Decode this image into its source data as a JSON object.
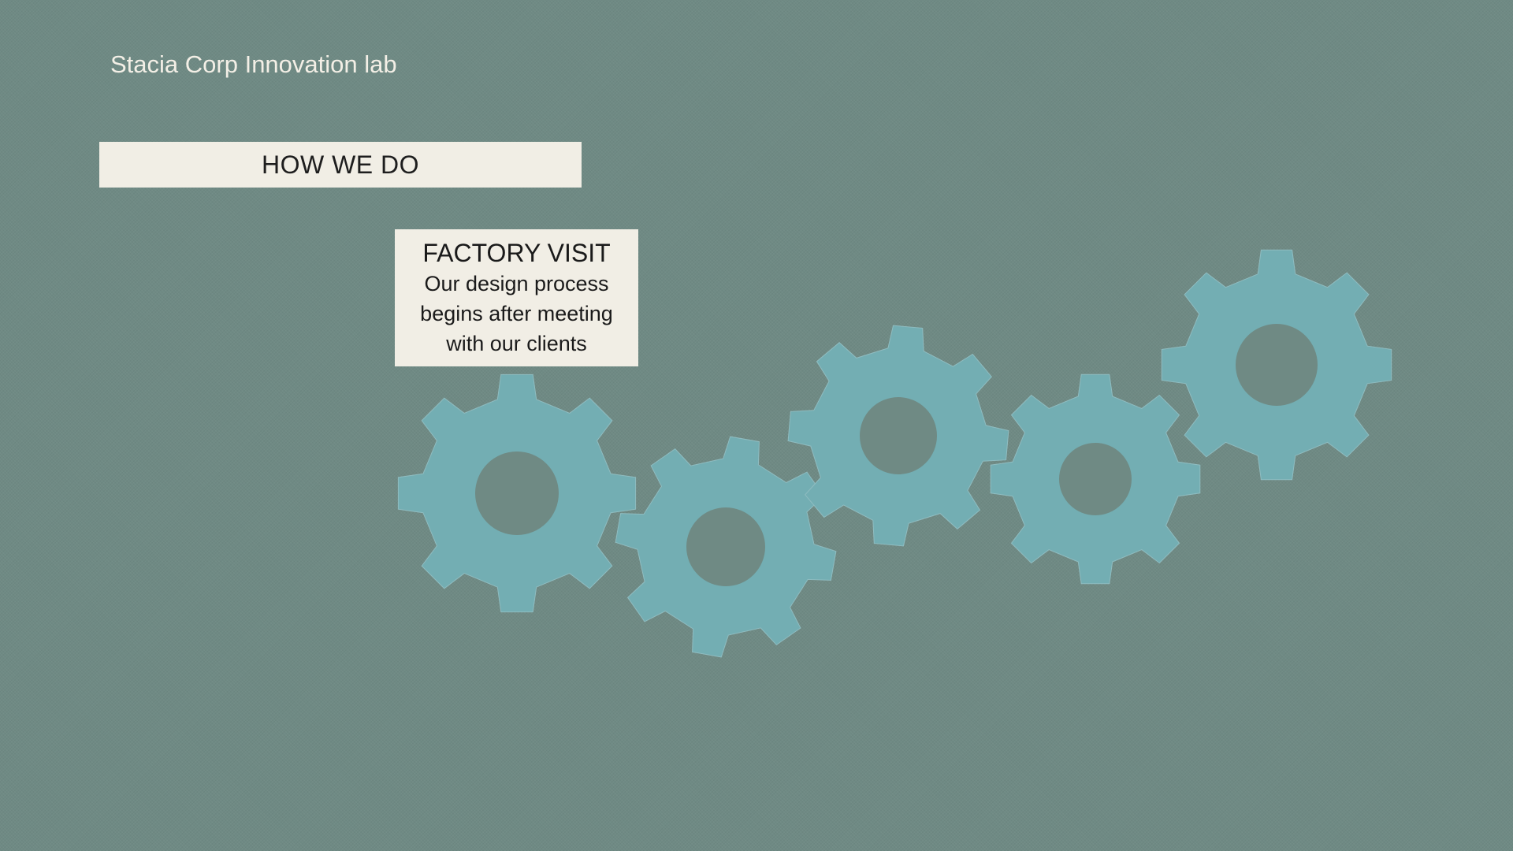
{
  "header": {
    "company_name": "Stacia Corp Innovation lab"
  },
  "section": {
    "title": "HOW WE DO"
  },
  "callout": {
    "title": "FACTORY VISIT",
    "body": "Our design process begins after meeting with our clients"
  },
  "colors": {
    "background": "#6f8a84",
    "gear": "#73aeb3",
    "panel": "#f1eee5",
    "header_text": "#f3efe6"
  },
  "icons": {
    "gears": [
      "gear-icon",
      "gear-icon",
      "gear-icon",
      "gear-icon",
      "gear-icon"
    ]
  }
}
